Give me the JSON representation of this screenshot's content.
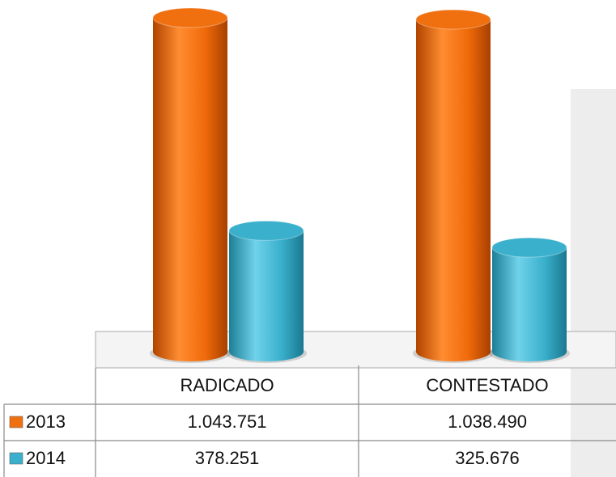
{
  "chart_data": {
    "type": "bar3d",
    "categories": [
      "RADICADO",
      "CONTESTADO"
    ],
    "series": [
      {
        "name": "2013",
        "color": "#f07010",
        "values": [
          1043751,
          1038490
        ],
        "value_labels": [
          "1.043.751",
          "1.038.490"
        ]
      },
      {
        "name": "2014",
        "color": "#3ab0cc",
        "values": [
          378251,
          325676
        ],
        "value_labels": [
          "378.251",
          "325.676"
        ]
      }
    ]
  }
}
